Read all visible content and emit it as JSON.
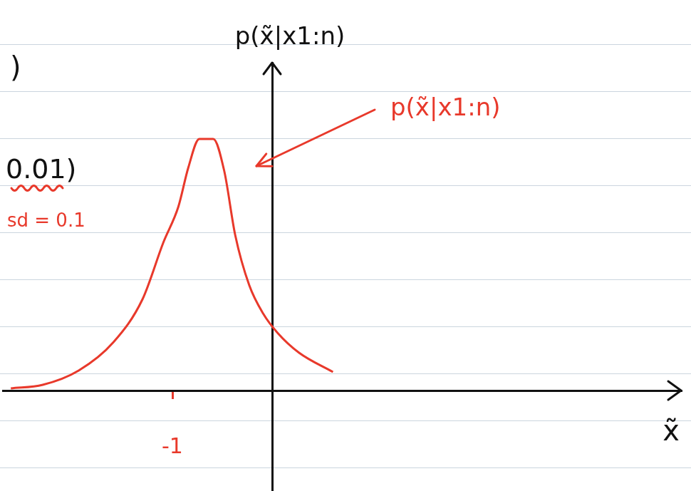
{
  "chart_data": {
    "type": "line",
    "x_label": "x̃",
    "y_label": "p(x̃|x1:n)",
    "x": [
      -2.62,
      -2.3,
      -1.94,
      -1.59,
      -1.3,
      -1.09,
      -0.94,
      -0.84,
      -0.73,
      -0.59,
      -0.48,
      -0.37,
      -0.23,
      -0.09,
      0.06,
      0.27,
      0.61
    ],
    "values": [
      0.03,
      0.08,
      0.28,
      0.68,
      1.28,
      2.08,
      2.58,
      3.13,
      3.53,
      3.53,
      3.08,
      2.18,
      1.48,
      1.08,
      0.8,
      0.53,
      0.26
    ],
    "color": "#e8392b",
    "xlim": [
      -2.7,
      4.1
    ],
    "ylim": [
      -1.4,
      4.6
    ],
    "xticks": [
      -1
    ],
    "tick_labels": "x",
    "grid": false,
    "annotations": [
      ")",
      "0.01)",
      "sd = 0.1",
      "p(x̃|x1:n)"
    ]
  }
}
